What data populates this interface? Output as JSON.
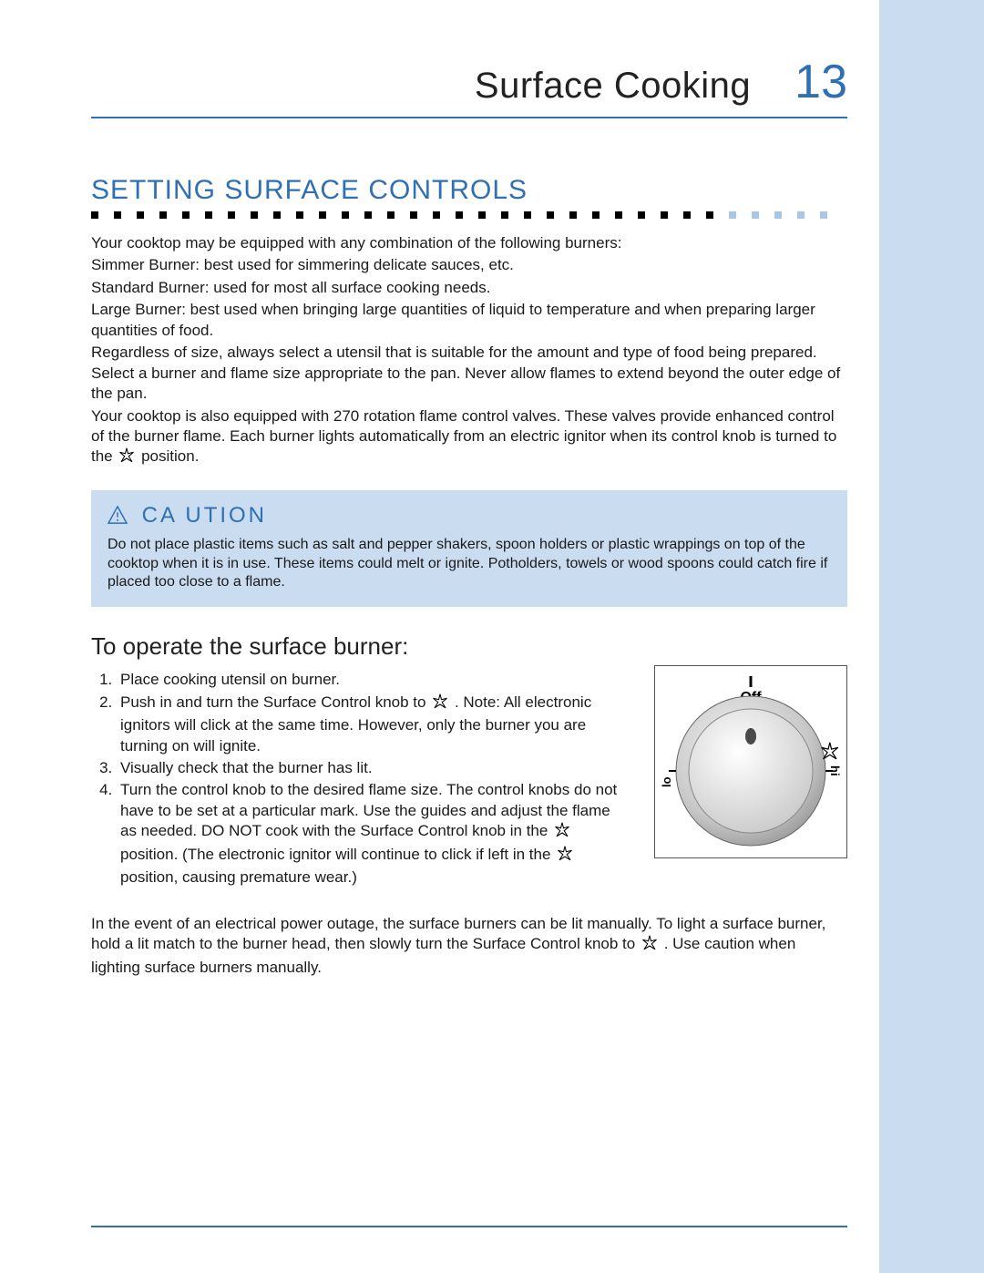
{
  "colors": {
    "accent": "#2f6fb3",
    "side_stripe": "#c9dcf0",
    "caution_bg": "#c9dcf0",
    "dot_black": "#000000",
    "dot_blue": "#a9c6e6",
    "text": "#1a1a1a"
  },
  "header": {
    "title": "Surface Cooking",
    "page_number": "13"
  },
  "section": {
    "title": "SETTING SURFACE CONTROLS",
    "dots": {
      "black_count": 28,
      "blue_count": 5
    }
  },
  "intro": {
    "p1": "Your cooktop may be equipped with any combination of the following burners:",
    "p2": "Simmer Burner: best used for simmering delicate sauces, etc.",
    "p3": "Standard Burner: used for most all surface cooking needs.",
    "p4": "Large Burner: best used when bringing large quantities of liquid to temperature and when preparing larger quantities of food.",
    "p5": "Regardless of size, always select a utensil that is suitable for the amount and type of food being prepared. Select a burner and flame size appropriate to the pan. Never allow flames to extend beyond the outer edge of the pan.",
    "p6a": "Your cooktop is also equipped with 270  rotation flame control valves. These valves provide enhanced control of the burner flame. Each burner lights automatically from an electric ignitor when its control knob is turned to the ",
    "p6b": " position."
  },
  "caution": {
    "label": "CA UTION",
    "body_a": "Do not place plastic items such as salt and pepper shakers, spoon holders or plastic wrappings on top of the cooktop when it is in use.",
    "body_b": "These items could melt or ignite. Potholders, towels or wood spoons could catch fire if placed too close to a flame."
  },
  "operate": {
    "title": "To operate the surface burner:",
    "steps": {
      "s1": "Place cooking utensil on burner.",
      "s2a": "Push in and turn   the Surface Control knob to ",
      "s2b": ". Note:  All electronic ignitors will click at the same time. However, only the burner you are turning on will ignite.",
      "s3": "Visually check that the burner has lit.",
      "s4a": "Turn  the control knob to the desired flame size. The control knobs do not have to be set at a particular mark. Use the guides and adjust the flame as needed. DO NOT cook with the Surface Control knob in the ",
      "s4b": " position. (The electronic ignitor will continue to click if left in the ",
      "s4c": " position, causing premature wear.)"
    }
  },
  "knob": {
    "off_label": "Off",
    "lo_label": "lo",
    "hi_label": "hi",
    "face_color": "#d8d8d8",
    "rim_color": "#bfbfbf",
    "indicator_color": "#555555"
  },
  "outage": {
    "a": "In the event of an electrical power outage, the surface burners can be lit manually. To light a surface burner, hold a lit match to the burner head, then slowly turn the Surface Control knob to ",
    "b": ". Use caution when lighting surface burners manually."
  }
}
